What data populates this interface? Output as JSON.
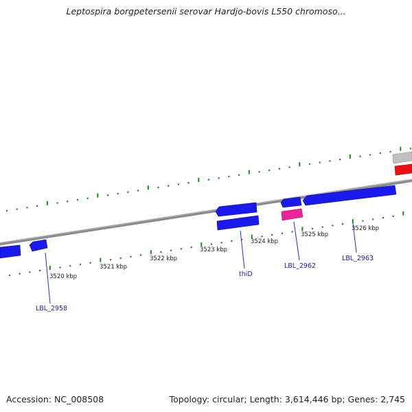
{
  "title": "Leptospira borgpetersenii serovar Hardjo-bovis L550 chromoso...",
  "footer": {
    "accession": "Accession: NC_008508",
    "summary": "Topology: circular; Length: 3,614,446 bp; Genes: 2,745"
  },
  "colors": {
    "backbone": "#8a8a8a",
    "gene_default": "#1a1aee",
    "gene_highlight_red": "#ee1111",
    "gene_highlight_pink": "#ee2299",
    "gene_grey": "#c0c0c0",
    "tick": "#1a8a1a",
    "label": "#1a1aa8"
  },
  "scale": {
    "unit": "kbp",
    "ticks": [
      {
        "value": 3520,
        "label": "3520 kbp"
      },
      {
        "value": 3521,
        "label": "3521 kbp"
      },
      {
        "value": 3522,
        "label": "3522 kbp"
      },
      {
        "value": 3523,
        "label": "3523 kbp"
      },
      {
        "value": 3524,
        "label": "3524 kbp"
      },
      {
        "value": 3525,
        "label": "3525 kbp"
      },
      {
        "value": 3526,
        "label": "3526 kbp"
      }
    ]
  },
  "gene_labels": [
    "LBL_2958",
    "thiD",
    "LBL_2962",
    "LBL_2963"
  ]
}
